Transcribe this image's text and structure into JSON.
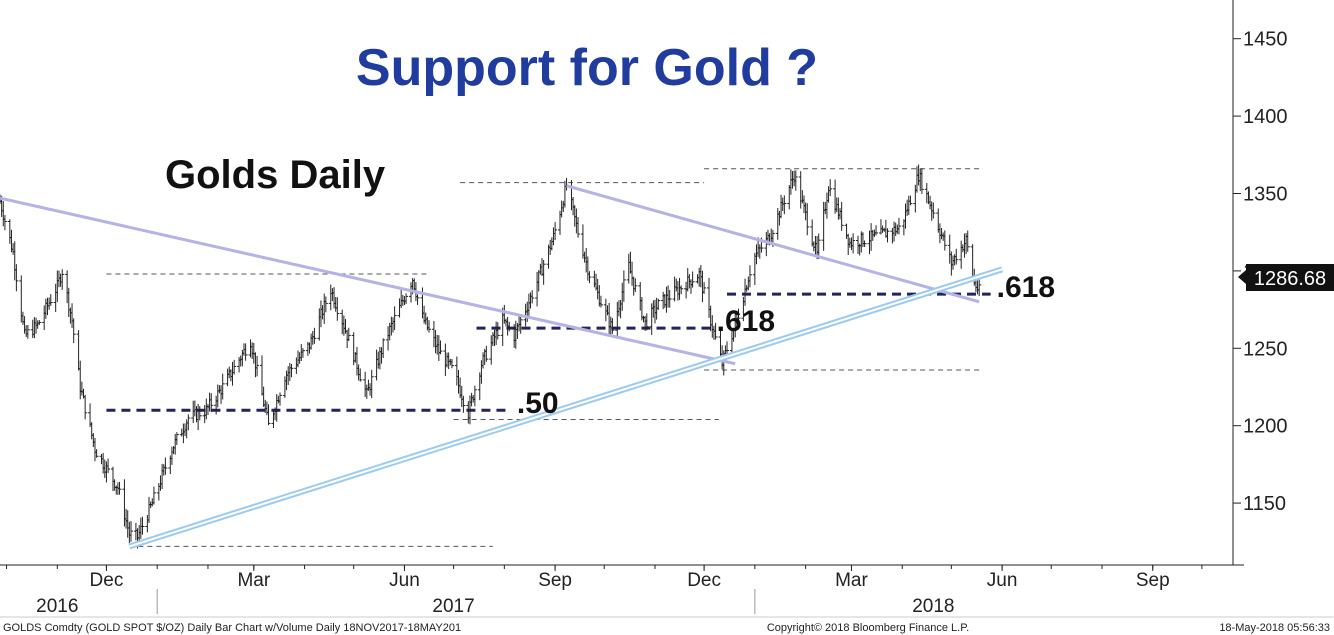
{
  "chart_data": {
    "type": "bar",
    "subtype": "ohlc",
    "title": "Support for Gold ?",
    "subtitle": "Golds Daily",
    "ylim": [
      1110,
      1475
    ],
    "y_ticks": [
      1150,
      1200,
      1250,
      1300,
      1350,
      1400,
      1450
    ],
    "y_tick_labels": [
      "1150",
      "1200",
      "1250",
      "1300",
      "1350",
      "1400",
      "1450"
    ],
    "last_price": 1286.68,
    "last_price_label": "1286.68",
    "x_range": [
      "2016-09-27",
      "2018-10-20"
    ],
    "months": [
      {
        "label": "Dec",
        "date": "2016-12-01"
      },
      {
        "label": "Mar",
        "date": "2017-03-01"
      },
      {
        "label": "Jun",
        "date": "2017-06-01"
      },
      {
        "label": "Sep",
        "date": "2017-09-01"
      },
      {
        "label": "Dec",
        "date": "2017-12-01"
      },
      {
        "label": "Mar",
        "date": "2018-03-01"
      },
      {
        "label": "Jun",
        "date": "2018-06-01"
      },
      {
        "label": "Sep",
        "date": "2018-09-01"
      }
    ],
    "years": [
      {
        "label": "2016",
        "date": "2016-11-01"
      },
      {
        "label": "2017",
        "date": "2017-07-01"
      },
      {
        "label": "2018",
        "date": "2018-04-20"
      }
    ],
    "year_separators": [
      "2017-01-01",
      "2018-01-01"
    ],
    "price_path": [
      [
        "2016-09-27",
        1345
      ],
      [
        "2016-10-05",
        1312
      ],
      [
        "2016-10-12",
        1258
      ],
      [
        "2016-10-20",
        1265
      ],
      [
        "2016-11-01",
        1290
      ],
      [
        "2016-11-04",
        1300
      ],
      [
        "2016-11-10",
        1268
      ],
      [
        "2016-11-15",
        1225
      ],
      [
        "2016-11-24",
        1185
      ],
      [
        "2016-12-01",
        1172
      ],
      [
        "2016-12-08",
        1160
      ],
      [
        "2016-12-15",
        1130
      ],
      [
        "2016-12-20",
        1128
      ],
      [
        "2016-12-29",
        1150
      ],
      [
        "2017-01-10",
        1185
      ],
      [
        "2017-01-20",
        1205
      ],
      [
        "2017-01-31",
        1210
      ],
      [
        "2017-02-10",
        1225
      ],
      [
        "2017-02-27",
        1255
      ],
      [
        "2017-03-03",
        1235
      ],
      [
        "2017-03-10",
        1200
      ],
      [
        "2017-03-20",
        1232
      ],
      [
        "2017-04-04",
        1252
      ],
      [
        "2017-04-17",
        1288
      ],
      [
        "2017-04-25",
        1265
      ],
      [
        "2017-05-09",
        1220
      ],
      [
        "2017-05-20",
        1255
      ],
      [
        "2017-06-06",
        1295
      ],
      [
        "2017-06-12",
        1270
      ],
      [
        "2017-06-22",
        1248
      ],
      [
        "2017-07-01",
        1235
      ],
      [
        "2017-07-10",
        1208
      ],
      [
        "2017-07-18",
        1240
      ],
      [
        "2017-07-31",
        1268
      ],
      [
        "2017-08-07",
        1258
      ],
      [
        "2017-08-20",
        1290
      ],
      [
        "2017-08-31",
        1322
      ],
      [
        "2017-09-08",
        1355
      ],
      [
        "2017-09-15",
        1325
      ],
      [
        "2017-09-22",
        1298
      ],
      [
        "2017-10-06",
        1262
      ],
      [
        "2017-10-16",
        1303
      ],
      [
        "2017-10-26",
        1266
      ],
      [
        "2017-11-03",
        1278
      ],
      [
        "2017-11-20",
        1292
      ],
      [
        "2017-11-28",
        1298
      ],
      [
        "2017-12-05",
        1268
      ],
      [
        "2017-12-12",
        1240
      ],
      [
        "2017-12-22",
        1272
      ],
      [
        "2017-12-31",
        1308
      ],
      [
        "2018-01-10",
        1322
      ],
      [
        "2018-01-25",
        1362
      ],
      [
        "2018-02-08",
        1310
      ],
      [
        "2018-02-15",
        1355
      ],
      [
        "2018-02-28",
        1318
      ],
      [
        "2018-03-15",
        1322
      ],
      [
        "2018-03-31",
        1328
      ],
      [
        "2018-04-11",
        1362
      ],
      [
        "2018-04-20",
        1338
      ],
      [
        "2018-05-01",
        1305
      ],
      [
        "2018-05-10",
        1320
      ],
      [
        "2018-05-15",
        1292
      ],
      [
        "2018-05-18",
        1287
      ]
    ],
    "trendlines": [
      {
        "kind": "resistance",
        "from": [
          "2016-09-27",
          1347
        ],
        "to": [
          "2017-12-20",
          1240
        ]
      },
      {
        "kind": "resistance",
        "from": [
          "2017-09-08",
          1355
        ],
        "to": [
          "2018-05-18",
          1280
        ]
      },
      {
        "kind": "support",
        "from": [
          "2016-12-15",
          1122
        ],
        "to": [
          "2018-06-01",
          1301
        ]
      }
    ],
    "fib_levels": [
      {
        "label": ".50",
        "value": 1210,
        "from": "2016-12-01",
        "to": "2017-08-05"
      },
      {
        "label": ".618",
        "value": 1263,
        "from": "2017-07-15",
        "to": "2017-12-05"
      },
      {
        "label": ".618",
        "value": 1285,
        "from": "2017-12-15",
        "to": "2018-05-25"
      }
    ],
    "range_lines": [
      {
        "value": 1298,
        "from": "2016-12-01",
        "to": "2017-06-15"
      },
      {
        "value": 1204,
        "from": "2017-07-01",
        "to": "2017-12-10"
      },
      {
        "value": 1122,
        "from": "2016-12-15",
        "to": "2017-07-25"
      },
      {
        "value": 1357,
        "from": "2017-07-05",
        "to": "2017-12-01"
      },
      {
        "value": 1366,
        "from": "2017-12-01",
        "to": "2018-05-20"
      },
      {
        "value": 1236,
        "from": "2017-12-01",
        "to": "2018-05-20"
      }
    ]
  },
  "footer": {
    "left": "GOLDS Comdty (GOLD SPOT $/OZ) Daily Bar Chart w/Volume  Daily 18NOV2017-18MAY201",
    "center": "Copyright© 2018 Bloomberg Finance L.P.",
    "right": "18-May-2018 05:56:33"
  },
  "colors": {
    "title": "#1f3c9e",
    "subtitle": "#111111",
    "bars": "#222222",
    "resistance": "#b4b2e6",
    "support": "#9ccbf1",
    "fib": "#23235e",
    "range": "#555555",
    "price_box": "#111111"
  }
}
